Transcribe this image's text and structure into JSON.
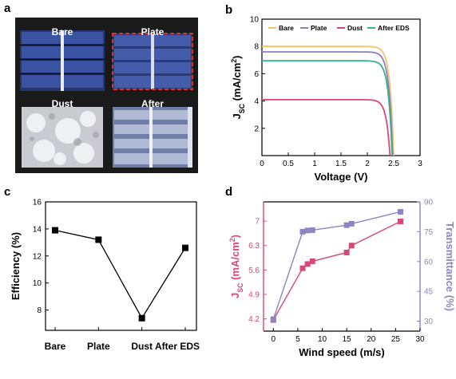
{
  "panels": {
    "a": {
      "letter": "a",
      "photos": [
        {
          "label": "Bare"
        },
        {
          "label": "Plate"
        },
        {
          "label": "Dust"
        },
        {
          "label": "After"
        }
      ]
    },
    "b": {
      "letter": "b"
    },
    "c": {
      "letter": "c"
    },
    "d": {
      "letter": "d"
    }
  },
  "chart_data": [
    {
      "id": "b",
      "type": "line",
      "xlabel": "Voltage (V)",
      "ylabel": "J_SC (mA/cm^2)",
      "xlim": [
        0,
        3
      ],
      "ylim": [
        0,
        10
      ],
      "xticks": [
        0,
        0.5,
        1,
        1.5,
        2,
        2.5,
        3
      ],
      "yticks": [
        2,
        4,
        6,
        8,
        10
      ],
      "legend_position": "top",
      "series": [
        {
          "name": "Bare",
          "color": "#f2c46a",
          "jsc": 8.0,
          "voc": 2.5
        },
        {
          "name": "Plate",
          "color": "#8c7fc2",
          "jsc": 7.6,
          "voc": 2.48
        },
        {
          "name": "Dust",
          "color": "#d9477a",
          "jsc": 4.1,
          "voc": 2.43
        },
        {
          "name": "After EDS",
          "color": "#3aae8e",
          "jsc": 6.95,
          "voc": 2.47
        }
      ]
    },
    {
      "id": "c",
      "type": "line",
      "xlabel": "",
      "ylabel": "Efficiency (%)",
      "ylim": [
        6.5,
        16
      ],
      "yticks": [
        8,
        10,
        12,
        14,
        16
      ],
      "categories": [
        "Bare",
        "Plate",
        "Dust",
        "After EDS"
      ],
      "series": [
        {
          "values": [
            13.9,
            13.2,
            7.4,
            12.6
          ],
          "color": "#000000"
        }
      ]
    },
    {
      "id": "d",
      "type": "line",
      "xlabel": "Wind speed (m/s)",
      "xlim": [
        -2,
        30
      ],
      "xticks": [
        0,
        5,
        10,
        15,
        20,
        25,
        30
      ],
      "y_left": {
        "label": "J_SC (mA/cm^2)",
        "color": "#d9477a",
        "ylim": [
          3.85,
          7.55
        ],
        "ticks": [
          "4.2",
          "4.9",
          "5.6",
          "6.3",
          "7"
        ]
      },
      "y_right": {
        "label": "Transmittance (%)",
        "color": "#8c86c2",
        "ylim": [
          25,
          90
        ],
        "ticks": [
          "30",
          "45",
          "60",
          "75",
          "90"
        ]
      },
      "series": [
        {
          "axis": "left",
          "color": "#d9477a",
          "x": [
            0,
            6,
            7,
            8,
            15,
            16,
            26
          ],
          "values": [
            4.17,
            5.65,
            5.77,
            5.85,
            6.1,
            6.3,
            6.99
          ]
        },
        {
          "axis": "right",
          "color": "#8c86c2",
          "x": [
            0,
            6,
            7,
            8,
            15,
            16,
            26
          ],
          "values": [
            31,
            75,
            75.6,
            75.8,
            78.3,
            79,
            85
          ]
        }
      ]
    }
  ]
}
